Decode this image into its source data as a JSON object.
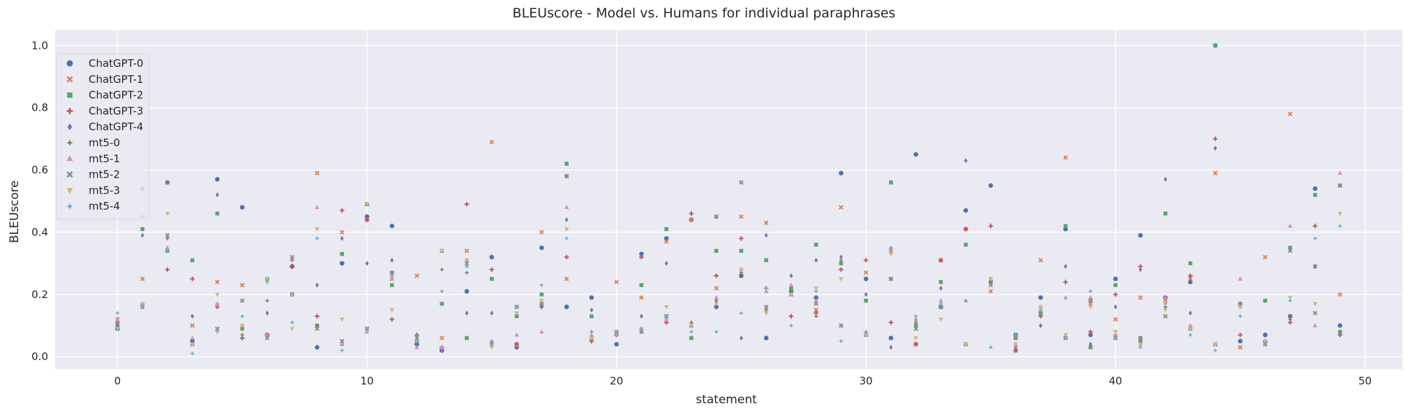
{
  "chart_data": {
    "type": "scatter",
    "title": "BLEUscore - Model vs. Humans for individual paraphrases",
    "xlabel": "statement",
    "ylabel": "BLEUscore",
    "xlim": [
      -2.5,
      51.5
    ],
    "ylim": [
      -0.04,
      1.05
    ],
    "xticks": [
      0,
      10,
      20,
      30,
      40,
      50
    ],
    "yticks": [
      0.0,
      0.2,
      0.4,
      0.6,
      0.8,
      1.0
    ],
    "grid": true,
    "legend_position": "top-left",
    "series": [
      {
        "name": "ChatGPT-0",
        "color": "#4c72b0",
        "marker": "circle",
        "x": [
          0,
          1,
          2,
          3,
          4,
          5,
          6,
          7,
          8,
          9,
          10,
          11,
          12,
          13,
          14,
          15,
          16,
          17,
          18,
          19,
          20,
          21,
          22,
          23,
          24,
          25,
          26,
          27,
          28,
          29,
          30,
          31,
          32,
          33,
          34,
          35,
          36,
          37,
          38,
          39,
          40,
          41,
          42,
          43,
          44,
          45,
          46,
          47,
          48,
          49
        ],
        "y": [
          0.09,
          0.54,
          0.56,
          0.05,
          0.57,
          0.48,
          0.07,
          0.29,
          0.03,
          0.3,
          0.45,
          0.42,
          0.04,
          0.02,
          0.21,
          0.32,
          0.03,
          0.35,
          0.16,
          0.19,
          0.04,
          0.33,
          0.38,
          0.44,
          0.16,
          0.26,
          0.06,
          0.21,
          0.19,
          0.59,
          0.25,
          0.06,
          0.65,
          0.16,
          0.47,
          0.55,
          0.07,
          0.19,
          0.41,
          0.07,
          0.25,
          0.39,
          0.19,
          0.24,
          1.0,
          0.05,
          0.07,
          0.13,
          0.54,
          0.1
        ]
      },
      {
        "name": "ChatGPT-1",
        "color": "#dd8452",
        "marker": "x",
        "x": [
          0,
          1,
          2,
          3,
          4,
          5,
          6,
          7,
          8,
          9,
          10,
          11,
          12,
          13,
          14,
          15,
          16,
          17,
          18,
          19,
          20,
          21,
          22,
          23,
          24,
          25,
          26,
          27,
          28,
          29,
          30,
          31,
          32,
          33,
          34,
          35,
          36,
          37,
          38,
          39,
          40,
          41,
          42,
          43,
          44,
          45,
          46,
          47,
          48,
          49
        ],
        "y": [
          0.12,
          0.25,
          0.56,
          0.1,
          0.24,
          0.23,
          0.07,
          0.2,
          0.59,
          0.4,
          0.44,
          0.25,
          0.26,
          0.06,
          0.34,
          0.69,
          0.04,
          0.4,
          0.25,
          0.06,
          0.24,
          0.19,
          0.37,
          0.44,
          0.22,
          0.45,
          0.43,
          0.2,
          0.15,
          0.48,
          0.27,
          0.34,
          0.04,
          0.31,
          0.41,
          0.21,
          0.02,
          0.31,
          0.64,
          0.17,
          0.12,
          0.19,
          0.18,
          0.25,
          0.59,
          0.03,
          0.32,
          0.78,
          0.29,
          0.2
        ]
      },
      {
        "name": "ChatGPT-2",
        "color": "#55a868",
        "marker": "square",
        "x": [
          0,
          1,
          2,
          3,
          4,
          5,
          6,
          7,
          8,
          9,
          10,
          11,
          12,
          13,
          14,
          15,
          16,
          17,
          18,
          19,
          20,
          21,
          22,
          23,
          24,
          25,
          26,
          27,
          28,
          29,
          30,
          31,
          32,
          33,
          34,
          35,
          36,
          37,
          38,
          39,
          40,
          41,
          42,
          43,
          44,
          45,
          46,
          47,
          48,
          49
        ],
        "y": [
          0.1,
          0.41,
          0.34,
          0.31,
          0.46,
          0.09,
          0.25,
          0.2,
          0.1,
          0.33,
          0.49,
          0.23,
          0.05,
          0.17,
          0.06,
          0.25,
          0.13,
          0.2,
          0.62,
          0.13,
          0.08,
          0.23,
          0.41,
          0.06,
          0.34,
          0.34,
          0.31,
          0.22,
          0.36,
          0.3,
          0.18,
          0.56,
          0.1,
          0.24,
          0.36,
          0.24,
          0.06,
          0.14,
          0.42,
          0.03,
          0.23,
          0.05,
          0.46,
          0.3,
          1.0,
          0.17,
          0.18,
          0.35,
          0.52,
          0.08
        ]
      },
      {
        "name": "ChatGPT-3",
        "color": "#c44e52",
        "marker": "plus",
        "x": [
          0,
          1,
          2,
          3,
          4,
          5,
          6,
          7,
          8,
          9,
          10,
          11,
          12,
          13,
          14,
          15,
          16,
          17,
          18,
          19,
          20,
          21,
          22,
          23,
          24,
          25,
          26,
          27,
          28,
          29,
          30,
          31,
          32,
          33,
          34,
          35,
          36,
          37,
          38,
          39,
          40,
          41,
          42,
          43,
          44,
          45,
          46,
          47,
          48,
          49
        ],
        "y": [
          0.11,
          0.45,
          0.28,
          0.25,
          0.16,
          0.06,
          0.07,
          0.29,
          0.13,
          0.47,
          0.44,
          0.12,
          0.07,
          0.03,
          0.49,
          0.28,
          0.04,
          0.16,
          0.32,
          0.05,
          0.07,
          0.32,
          0.11,
          0.46,
          0.26,
          0.38,
          0.22,
          0.13,
          0.14,
          0.28,
          0.31,
          0.11,
          0.04,
          0.31,
          0.41,
          0.42,
          0.02,
          0.13,
          0.24,
          0.08,
          0.2,
          0.29,
          0.19,
          0.26,
          0.7,
          0.07,
          0.05,
          0.11,
          0.42,
          0.07
        ]
      },
      {
        "name": "ChatGPT-4",
        "color": "#8172b3",
        "marker": "diamond",
        "x": [
          0,
          1,
          2,
          3,
          4,
          5,
          6,
          7,
          8,
          9,
          10,
          11,
          12,
          13,
          14,
          15,
          16,
          17,
          18,
          19,
          20,
          21,
          22,
          23,
          24,
          25,
          26,
          27,
          28,
          29,
          30,
          31,
          32,
          33,
          34,
          35,
          36,
          37,
          38,
          39,
          40,
          41,
          42,
          43,
          44,
          45,
          46,
          47,
          48,
          49
        ],
        "y": [
          0.1,
          0.39,
          0.56,
          0.13,
          0.52,
          0.06,
          0.14,
          0.2,
          0.23,
          0.38,
          0.3,
          0.31,
          0.05,
          0.02,
          0.14,
          0.14,
          0.03,
          0.16,
          0.44,
          0.15,
          0.07,
          0.13,
          0.3,
          0.1,
          0.18,
          0.06,
          0.39,
          0.26,
          0.31,
          0.32,
          0.2,
          0.03,
          0.12,
          0.22,
          0.63,
          0.25,
          0.03,
          0.1,
          0.29,
          0.04,
          0.16,
          0.28,
          0.57,
          0.14,
          0.67,
          0.16,
          0.05,
          0.12,
          0.29,
          0.07
        ]
      },
      {
        "name": "mt5-0",
        "color": "#937860",
        "marker": "star",
        "x": [
          0,
          1,
          2,
          3,
          4,
          5,
          6,
          7,
          8,
          9,
          10,
          11,
          12,
          13,
          14,
          15,
          16,
          17,
          18,
          19,
          20,
          21,
          22,
          23,
          24,
          25,
          26,
          27,
          28,
          29,
          30,
          31,
          32,
          33,
          34,
          35,
          36,
          37,
          38,
          39,
          40,
          41,
          42,
          43,
          44,
          45,
          46,
          47,
          48,
          49
        ],
        "y": [
          0.11,
          0.17,
          0.38,
          0.04,
          0.17,
          0.07,
          0.18,
          0.31,
          0.1,
          0.04,
          0.49,
          0.27,
          0.07,
          0.28,
          0.27,
          0.05,
          0.16,
          0.17,
          0.58,
          0.08,
          0.07,
          0.09,
          0.13,
          0.11,
          0.45,
          0.27,
          0.15,
          0.21,
          0.13,
          0.31,
          0.07,
          0.25,
          0.11,
          0.16,
          0.04,
          0.24,
          0.06,
          0.13,
          0.06,
          0.18,
          0.07,
          0.06,
          0.16,
          0.09,
          0.04,
          0.16,
          0.05,
          0.13,
          0.42,
          0.55
        ]
      },
      {
        "name": "mt5-1",
        "color": "#da8bc3",
        "marker": "triangle",
        "x": [
          0,
          1,
          2,
          3,
          4,
          5,
          6,
          7,
          8,
          9,
          10,
          11,
          12,
          13,
          14,
          15,
          16,
          17,
          18,
          19,
          20,
          21,
          22,
          23,
          24,
          25,
          26,
          27,
          28,
          29,
          30,
          31,
          32,
          33,
          34,
          35,
          36,
          37,
          38,
          39,
          40,
          41,
          42,
          43,
          44,
          45,
          46,
          47,
          48,
          49
        ],
        "y": [
          0.12,
          0.17,
          0.35,
          0.06,
          0.17,
          0.1,
          0.07,
          0.2,
          0.48,
          0.04,
          0.08,
          0.25,
          0.03,
          0.03,
          0.31,
          0.05,
          0.07,
          0.08,
          0.48,
          0.07,
          0.07,
          0.08,
          0.12,
          0.1,
          0.19,
          0.28,
          0.21,
          0.23,
          0.18,
          0.1,
          0.08,
          0.35,
          0.12,
          0.18,
          0.18,
          0.25,
          0.04,
          0.16,
          0.19,
          0.19,
          0.07,
          0.04,
          0.19,
          0.1,
          0.04,
          0.25,
          0.05,
          0.42,
          0.1,
          0.59
        ]
      },
      {
        "name": "mt5-2",
        "color": "#8c8c8c",
        "marker": "x",
        "x": [
          0,
          1,
          2,
          3,
          4,
          5,
          6,
          7,
          8,
          9,
          10,
          11,
          12,
          13,
          14,
          15,
          16,
          17,
          18,
          19,
          20,
          21,
          22,
          23,
          24,
          25,
          26,
          27,
          28,
          29,
          30,
          31,
          32,
          33,
          34,
          35,
          36,
          37,
          38,
          39,
          40,
          41,
          42,
          43,
          44,
          45,
          46,
          47,
          48,
          49
        ],
        "y": [
          0.09,
          0.16,
          0.39,
          0.04,
          0.09,
          0.18,
          0.06,
          0.32,
          0.09,
          0.05,
          0.09,
          0.27,
          0.06,
          0.34,
          0.3,
          0.04,
          0.16,
          0.17,
          0.58,
          0.06,
          0.08,
          0.08,
          0.13,
          0.1,
          0.45,
          0.56,
          0.16,
          0.2,
          0.17,
          0.1,
          0.07,
          0.25,
          0.09,
          0.16,
          0.04,
          0.23,
          0.06,
          0.14,
          0.06,
          0.18,
          0.06,
          0.06,
          0.13,
          0.09,
          0.04,
          0.17,
          0.04,
          0.34,
          0.14,
          0.55
        ]
      },
      {
        "name": "mt5-3",
        "color": "#ccb974",
        "marker": "triangle-down",
        "x": [
          0,
          1,
          2,
          3,
          4,
          5,
          6,
          7,
          8,
          9,
          10,
          11,
          12,
          13,
          14,
          15,
          16,
          17,
          18,
          19,
          20,
          21,
          22,
          23,
          24,
          25,
          26,
          27,
          28,
          29,
          30,
          31,
          32,
          33,
          34,
          35,
          36,
          37,
          38,
          39,
          40,
          41,
          42,
          43,
          44,
          45,
          46,
          47,
          48,
          49
        ],
        "y": [
          0.09,
          0.17,
          0.46,
          0.04,
          0.2,
          0.1,
          0.25,
          0.09,
          0.41,
          0.12,
          0.49,
          0.15,
          0.05,
          0.34,
          0.31,
          0.03,
          0.14,
          0.18,
          0.41,
          0.06,
          0.08,
          0.09,
          0.16,
          0.1,
          0.17,
          0.28,
          0.14,
          0.2,
          0.22,
          0.25,
          0.07,
          0.33,
          0.06,
          0.12,
          0.04,
          0.25,
          0.04,
          0.16,
          0.07,
          0.16,
          0.08,
          0.04,
          0.15,
          0.09,
          0.04,
          0.16,
          0.05,
          0.19,
          0.17,
          0.46
        ]
      },
      {
        "name": "mt5-4",
        "color": "#64b5cd",
        "marker": "star",
        "x": [
          0,
          1,
          2,
          3,
          4,
          5,
          6,
          7,
          8,
          9,
          10,
          11,
          12,
          13,
          14,
          15,
          16,
          17,
          18,
          19,
          20,
          21,
          22,
          23,
          24,
          25,
          26,
          27,
          28,
          29,
          30,
          31,
          32,
          33,
          34,
          35,
          36,
          37,
          38,
          39,
          40,
          41,
          42,
          43,
          44,
          45,
          46,
          47,
          48,
          49
        ],
        "y": [
          0.14,
          0.16,
          0.34,
          0.01,
          0.08,
          0.13,
          0.24,
          0.11,
          0.38,
          0.02,
          0.09,
          0.26,
          0.05,
          0.21,
          0.29,
          0.05,
          0.16,
          0.23,
          0.38,
          0.08,
          0.08,
          0.09,
          0.13,
          0.08,
          0.08,
          0.14,
          0.22,
          0.1,
          0.21,
          0.05,
          0.08,
          0.35,
          0.13,
          0.17,
          0.18,
          0.03,
          0.07,
          0.15,
          0.06,
          0.21,
          0.06,
          0.03,
          0.17,
          0.07,
          0.02,
          0.13,
          0.04,
          0.18,
          0.38,
          0.42
        ]
      }
    ]
  }
}
